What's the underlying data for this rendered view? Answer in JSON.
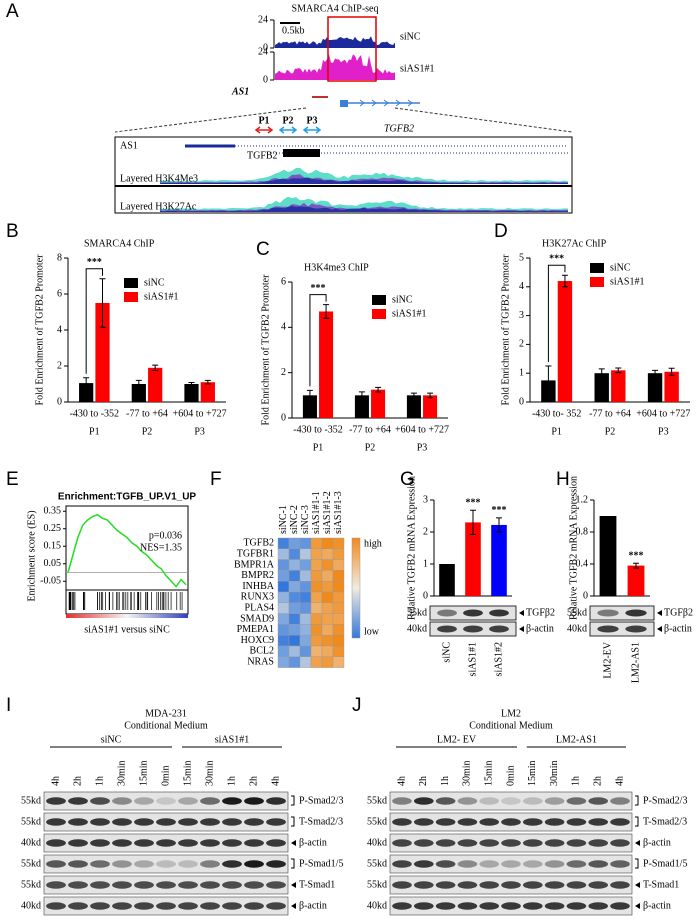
{
  "panel_letters": [
    "A",
    "B",
    "C",
    "D",
    "E",
    "F",
    "G",
    "H",
    "I",
    "J"
  ],
  "panel_a": {
    "title": "SMARCA4 ChIP-seq",
    "scale": "0.5kb",
    "tracks": [
      {
        "name": "siNC",
        "ymin": 0,
        "ymax": 24,
        "color": "#1a2a9c"
      },
      {
        "name": "siAS1#1",
        "ymin": 0,
        "ymax": 24,
        "color": "#e020c8"
      }
    ],
    "gene_left": "AS1",
    "primers": [
      "P1",
      "P2",
      "P3"
    ],
    "primer_colors": [
      "#e02020",
      "#20a0e0",
      "#20a0e0"
    ],
    "gene_right": "TGFB2",
    "inset": {
      "genes": [
        "AS1",
        "TGFB2"
      ],
      "tracks": [
        "Layered H3K4Me3",
        "Layered H3K27Ac"
      ]
    }
  },
  "chart_data": [
    {
      "type": "bar",
      "title": "SMARCA4 ChIP",
      "ylabel": "Fold Enrichment of TGFB2 Promoter",
      "categories": [
        "-430 to -352",
        "-77 to +64",
        "+604 to +727"
      ],
      "primers": [
        "P1",
        "P2",
        "P3"
      ],
      "primer_colors": [
        "#ff0000",
        "#000000",
        "#000000"
      ],
      "series": [
        {
          "name": "siNC",
          "color": "#000000",
          "values": [
            1.05,
            1.0,
            1.0
          ],
          "errors": [
            0.3,
            0.2,
            0.08
          ]
        },
        {
          "name": "siAS1#1",
          "color": "#ff0000",
          "values": [
            5.5,
            1.9,
            1.1
          ],
          "errors": [
            1.35,
            0.15,
            0.1
          ]
        }
      ],
      "ylim": [
        0,
        8
      ],
      "yticks": [
        0,
        2,
        4,
        6,
        8
      ],
      "annotation": "***"
    },
    {
      "type": "bar",
      "title": "H3K4me3 ChIP",
      "ylabel": "Fold Enrichment of TGFB2 Promoter",
      "categories": [
        "-430 to -352",
        "-77 to +64",
        "+604 to +727"
      ],
      "primers": [
        "P1",
        "P2",
        "P3"
      ],
      "primer_colors": [
        "#ff0000",
        "#000000",
        "#000000"
      ],
      "series": [
        {
          "name": "siNC",
          "color": "#000000",
          "values": [
            1.0,
            1.0,
            1.0
          ],
          "errors": [
            0.22,
            0.15,
            0.1
          ]
        },
        {
          "name": "siAS1#1",
          "color": "#ff0000",
          "values": [
            4.7,
            1.25,
            1.0
          ],
          "errors": [
            0.3,
            0.1,
            0.1
          ]
        }
      ],
      "ylim": [
        0,
        6
      ],
      "yticks": [
        0,
        2,
        4,
        6
      ],
      "annotation": "***"
    },
    {
      "type": "bar",
      "title": "H3K27Ac ChIP",
      "ylabel": "Fold Enrichment of  TGFB2 Promoter",
      "categories": [
        "-430 to- 352",
        "-77 to +64",
        "+604 to +727"
      ],
      "primers": [
        "P1",
        "P2",
        "P3"
      ],
      "primer_colors": [
        "#ff0000",
        "#000000",
        "#000000"
      ],
      "series": [
        {
          "name": "siNC",
          "color": "#000000",
          "values": [
            0.75,
            1.0,
            1.0
          ],
          "errors": [
            0.5,
            0.15,
            0.1
          ]
        },
        {
          "name": "siAS1#1",
          "color": "#ff0000",
          "values": [
            4.2,
            1.1,
            1.05
          ],
          "errors": [
            0.2,
            0.08,
            0.12
          ]
        }
      ],
      "ylim": [
        0,
        5
      ],
      "yticks": [
        0,
        1,
        2,
        3,
        4,
        5
      ],
      "annotation": "***"
    },
    {
      "type": "line",
      "title": "Enrichment:TGFB_UP.V1_UP",
      "ylabel": "Enrichment score (ES)",
      "xlabel": "siAS1#1 versus siNC",
      "stats": [
        "p=0.036",
        "NES=1.35"
      ],
      "color": "#22dd22",
      "values": [
        0,
        0.1,
        0.2,
        0.27,
        0.3,
        0.32,
        0.33,
        0.31,
        0.3,
        0.27,
        0.24,
        0.22,
        0.2,
        0.17,
        0.15,
        0.12,
        0.1,
        0.07,
        0.04,
        0.02,
        -0.02,
        -0.05,
        -0.08,
        -0.04,
        -0.07
      ],
      "ylim": [
        -0.1,
        0.38
      ],
      "yticks": [
        -0.05,
        0.05,
        0.15,
        0.25,
        0.35
      ]
    },
    {
      "type": "bar",
      "ylabel": "Relative TGFB2 mRNA Expression",
      "categories": [
        "siNC",
        "siAS1#1",
        "siAS1#2"
      ],
      "values": [
        1.0,
        2.3,
        2.22
      ],
      "errors": [
        0,
        0.38,
        0.22
      ],
      "colors": [
        "#000000",
        "#ff0000",
        "#0000ff"
      ],
      "annotations": [
        null,
        "***",
        "***"
      ],
      "ylim": [
        0,
        3
      ],
      "yticks": [
        0,
        1,
        2,
        3
      ],
      "blot": {
        "kd": [
          "55kd",
          "40kd"
        ],
        "proteins": [
          "TGFβ2",
          "β-actin"
        ]
      }
    },
    {
      "type": "bar",
      "ylabel": "Relative TGFB2 mRNA Expression",
      "categories": [
        "LM2-EV",
        "LM2-AS1"
      ],
      "values": [
        1.0,
        0.38
      ],
      "errors": [
        0,
        0.03
      ],
      "colors": [
        "#000000",
        "#ff0000"
      ],
      "annotations": [
        null,
        "***"
      ],
      "ylim": [
        0,
        1.2
      ],
      "yticks": [
        0,
        0.4,
        0.8,
        1.2
      ],
      "blot": {
        "kd": [
          "55kd",
          "40kd"
        ],
        "proteins": [
          "TGFβ2",
          "β-actin"
        ]
      }
    }
  ],
  "panel_f": {
    "columns": [
      "siNC-1",
      "siNC-2",
      "siNC-3",
      "siAS1#1-1",
      "siAS1#1-2",
      "siAS1#1-3"
    ],
    "rows": [
      "TGFB2",
      "TGFBR1",
      "BMPR1A",
      "BMPR2",
      "INHBA",
      "RUNX3",
      "PLAS4",
      "SMAD9",
      "PMEPA1",
      "HOXC9",
      "BCL2",
      "NRAS"
    ],
    "values": [
      [
        -1.2,
        -0.9,
        -1.0,
        0.9,
        1.1,
        1.0
      ],
      [
        -0.6,
        -1.1,
        -0.5,
        0.8,
        0.7,
        0.9
      ],
      [
        -1.0,
        -0.7,
        -0.9,
        0.8,
        1.0,
        0.7
      ],
      [
        -0.9,
        -1.2,
        -0.6,
        0.9,
        0.7,
        1.1
      ],
      [
        -1.3,
        -0.8,
        -1.0,
        1.0,
        0.9,
        1.1
      ],
      [
        -0.7,
        -1.1,
        -1.2,
        0.8,
        1.1,
        0.9
      ],
      [
        -0.5,
        -0.9,
        -1.0,
        0.6,
        0.8,
        0.9
      ],
      [
        -0.8,
        -1.2,
        -0.6,
        0.9,
        0.8,
        0.8
      ],
      [
        -1.0,
        -0.9,
        -0.7,
        1.0,
        0.7,
        1.0
      ],
      [
        -1.2,
        -1.3,
        -0.8,
        0.9,
        1.0,
        1.1
      ],
      [
        -0.9,
        -0.6,
        -1.0,
        0.6,
        0.7,
        1.0
      ],
      [
        -0.8,
        -1.0,
        -0.5,
        0.8,
        0.9,
        0.6
      ]
    ],
    "legend": [
      "high",
      "low"
    ]
  },
  "panel_i": {
    "cell_line": "MDA-231",
    "treatment": "Conditional Medium",
    "groups": [
      "siNC",
      "siAS1#1"
    ],
    "lanes": [
      "4h",
      "2h",
      "1h",
      "30min",
      "15min",
      "0min",
      "15min",
      "30min",
      "1h",
      "2h",
      "4h"
    ],
    "rows": [
      {
        "kd": "55kd",
        "protein": "P-Smad2/3"
      },
      {
        "kd": "55kd",
        "protein": "T-Smad2/3"
      },
      {
        "kd": "40kd",
        "protein": "β-actin"
      },
      {
        "kd": "55kd",
        "protein": "P-Smad1/5"
      },
      {
        "kd": "55kd",
        "protein": "T-Smad1"
      },
      {
        "kd": "40kd",
        "protein": "β-actin"
      }
    ]
  },
  "panel_j": {
    "cell_line": "LM2",
    "treatment": "Conditional Medium",
    "groups": [
      "LM2- EV",
      "LM2-AS1"
    ],
    "lanes": [
      "4h",
      "2h",
      "1h",
      "30min",
      "15min",
      "0min",
      "15min",
      "30min",
      "1h",
      "2h",
      "4h"
    ],
    "rows": [
      {
        "kd": "55kd",
        "protein": "P-Smad2/3"
      },
      {
        "kd": "55kd",
        "protein": "T-Smad2/3"
      },
      {
        "kd": "40kd",
        "protein": "β-actin"
      },
      {
        "kd": "55kd",
        "protein": "P-Smad1/5"
      },
      {
        "kd": "55kd",
        "protein": "T-Smad1"
      },
      {
        "kd": "40kd",
        "protein": "β-actin"
      }
    ]
  }
}
